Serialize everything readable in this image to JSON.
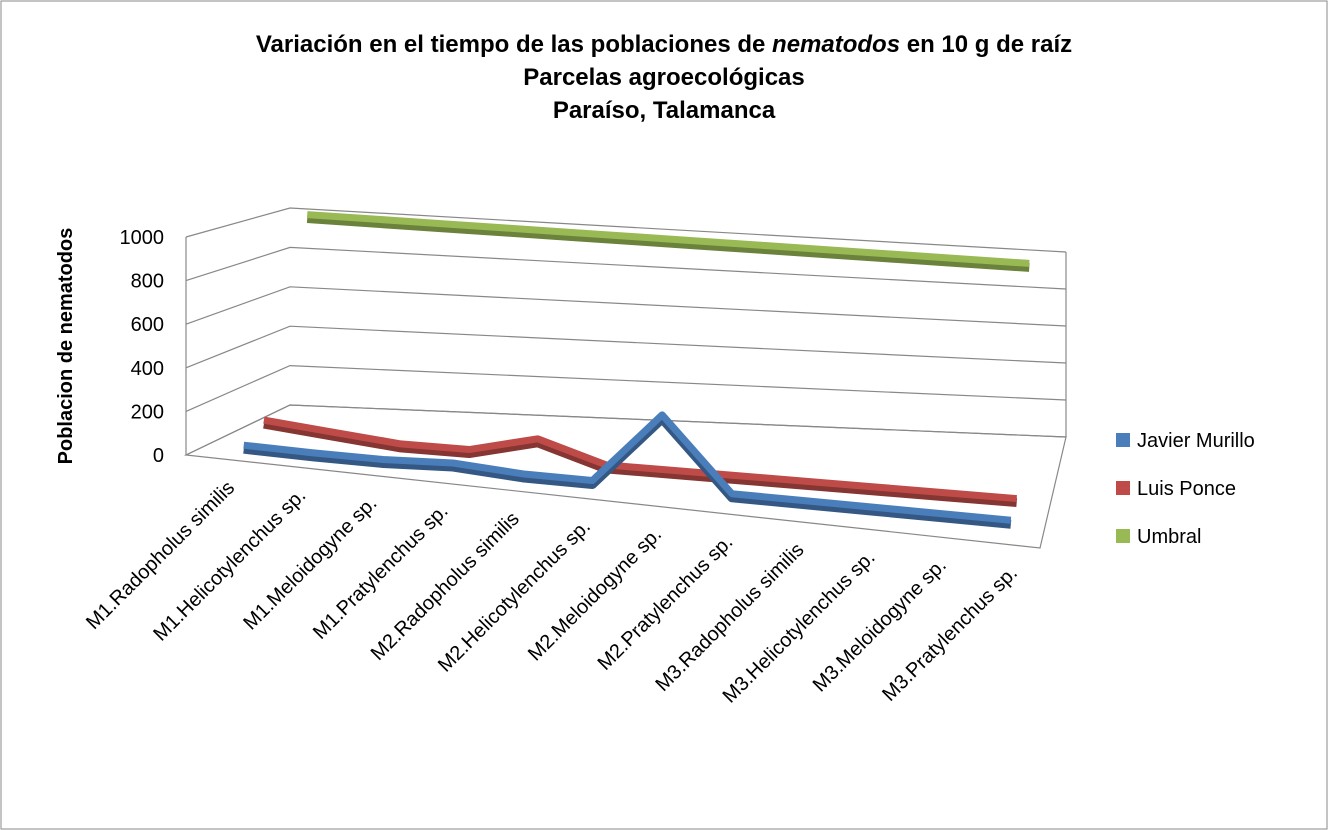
{
  "chart_data": {
    "type": "line3d",
    "title": [
      [
        "Variación en el tiempo de las poblaciones de ",
        "nematodos",
        " en 10 g de raíz"
      ],
      "Parcelas agroecológicas",
      "Paraíso, Talamanca"
    ],
    "y_label": "Poblacion de nematodos",
    "categories": [
      "M1.Radopholus similis",
      "M1.Helicotylenchus sp.",
      "M1.Meloidogyne sp.",
      "M1.Pratylenchus sp.",
      "M2.Radopholus similis",
      "M2.Helicotylenchus sp.",
      "M2.Meloidogyne sp.",
      "M2.Pratylenchus sp.",
      "M3.Radopholus similis",
      "M3.Helicotylenchus sp.",
      "M3.Meloidogyne sp.",
      "M3.Pratylenchus sp."
    ],
    "series": [
      {
        "name": "Javier Murillo",
        "color": "#4a7ebb",
        "values": [
          10,
          5,
          5,
          20,
          0,
          0,
          350,
          0,
          0,
          0,
          0,
          0
        ]
      },
      {
        "name": "Luis Ponce",
        "color": "#be4b48",
        "values": [
          80,
          50,
          20,
          20,
          100,
          0,
          0,
          0,
          0,
          0,
          0,
          0
        ]
      },
      {
        "name": "Umbral",
        "color": "#98b954",
        "values": [
          1000,
          1000,
          1000,
          1000,
          1000,
          1000,
          1000,
          1000,
          1000,
          1000,
          1000,
          1000
        ]
      }
    ],
    "ylim": [
      0,
      1000
    ],
    "yticks": [
      0,
      200,
      400,
      600,
      800,
      1000
    ],
    "grid": true,
    "legend": "right"
  }
}
